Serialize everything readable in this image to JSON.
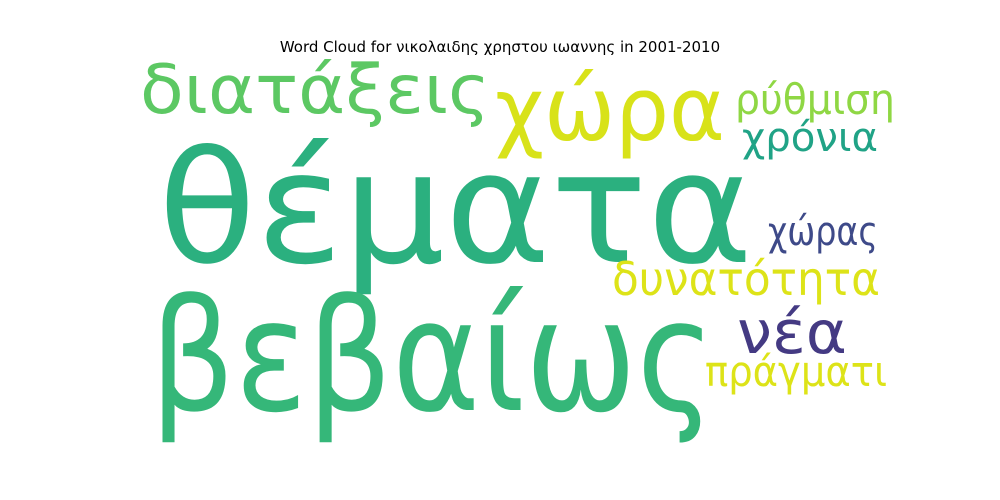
{
  "chart_data": {
    "type": "wordcloud",
    "title": "Word Cloud for νικολαιδης χρηστου ιωαννης in 2001-2010",
    "words": [
      {
        "text": "θέματα",
        "weight": 1.0,
        "color": "#2BB07F"
      },
      {
        "text": "βεβαίως",
        "weight": 0.92,
        "color": "#35B779"
      },
      {
        "text": "χώρα",
        "weight": 0.55,
        "color": "#D8E219"
      },
      {
        "text": "διατάξεις",
        "weight": 0.42,
        "color": "#5CC863"
      },
      {
        "text": "νέα",
        "weight": 0.38,
        "color": "#443A83"
      },
      {
        "text": "δυνατότητα",
        "weight": 0.3,
        "color": "#DDE318"
      },
      {
        "text": "ρύθμιση",
        "weight": 0.28,
        "color": "#8FD744"
      },
      {
        "text": "πράγματι",
        "weight": 0.26,
        "color": "#DDE318"
      },
      {
        "text": "χρόνια",
        "weight": 0.26,
        "color": "#20A386"
      },
      {
        "text": "χώρας",
        "weight": 0.26,
        "color": "#3E4A89"
      }
    ]
  }
}
